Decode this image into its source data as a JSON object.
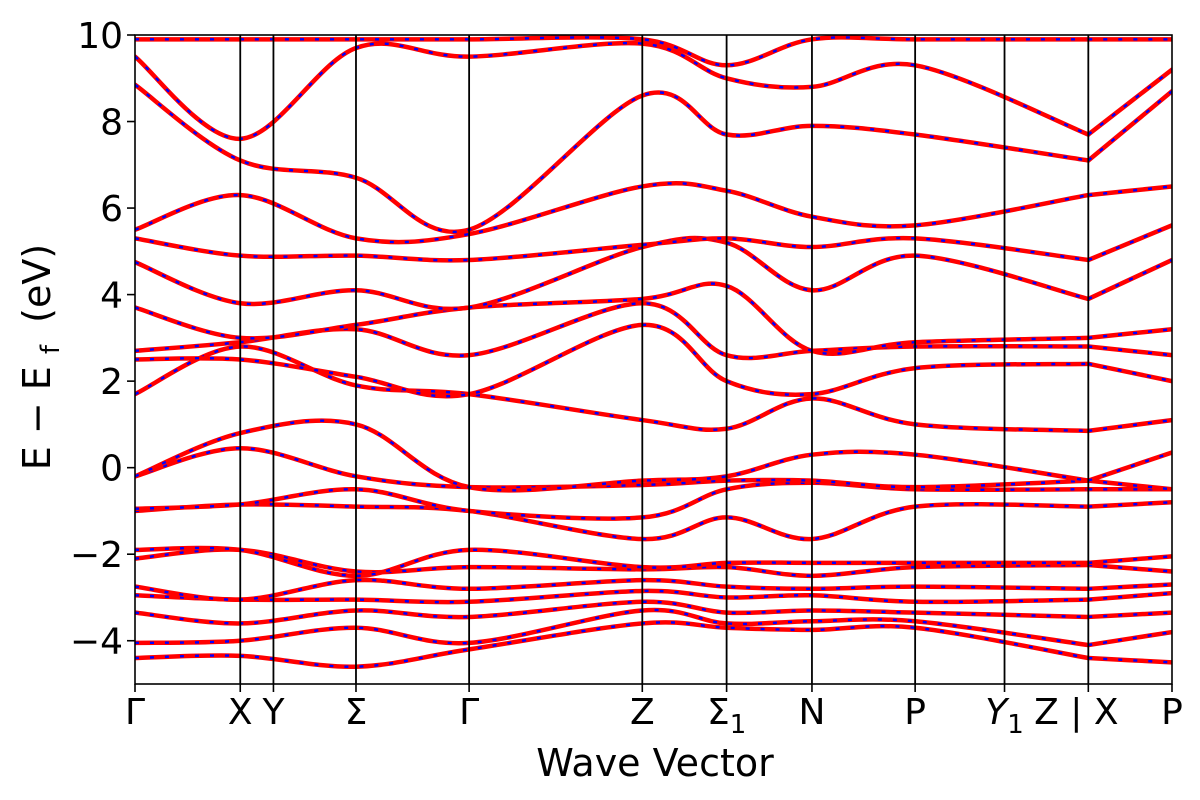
{
  "chart_data": {
    "type": "line",
    "title": "",
    "xlabel": "Wave Vector",
    "ylabel": "E − E",
    "ylabel_sub": "f",
    "ylabel_unit": "(eV)",
    "ylim": [
      -5,
      10
    ],
    "yticks": [
      -4,
      -2,
      0,
      2,
      4,
      6,
      8,
      10
    ],
    "ytick_labels": [
      "−4",
      "−2",
      "0",
      "2",
      "4",
      "6",
      "8",
      "10"
    ],
    "grid": false,
    "legend": "none",
    "colors": {
      "primary_band": "#ff0000",
      "overlay_band": "#0000ff",
      "kpoint_line": "#000000"
    },
    "kpath_labels": [
      {
        "label": "Γ",
        "sub": "",
        "italic": false
      },
      {
        "label": "X",
        "sub": "",
        "italic": false
      },
      {
        "label": "Y",
        "sub": "",
        "italic": false
      },
      {
        "label": "Σ",
        "sub": "",
        "italic": false
      },
      {
        "label": "Γ",
        "sub": "",
        "italic": false
      },
      {
        "label": "Z",
        "sub": "",
        "italic": false
      },
      {
        "label": "Σ",
        "sub": "1",
        "italic": false
      },
      {
        "label": "N",
        "sub": "",
        "italic": false
      },
      {
        "label": "P",
        "sub": "",
        "italic": false
      },
      {
        "label": "Y",
        "sub": "1",
        "italic": true
      },
      {
        "label": "Z | X",
        "sub": "",
        "italic": false
      },
      {
        "label": "P",
        "sub": "",
        "italic": false
      }
    ],
    "kpath_positions": [
      0.0,
      0.1015,
      0.1335,
      0.2131,
      0.3222,
      0.4892,
      0.5705,
      0.6528,
      0.7523,
      0.8385,
      0.9193,
      1.0
    ],
    "segment_breaks": [
      0.9193
    ],
    "bands": [
      {
        "name": "band-01",
        "x": [
          0.0,
          0.1015,
          0.2131,
          0.3222,
          0.4892,
          0.5705,
          0.6528,
          0.7523,
          0.9193,
          1.0
        ],
        "y": [
          -4.4,
          -4.35,
          -4.6,
          -4.2,
          -3.6,
          -3.7,
          -3.75,
          -3.7,
          -4.4,
          -4.5
        ]
      },
      {
        "name": "band-02",
        "x": [
          0.0,
          0.1015,
          0.2131,
          0.3222,
          0.4892,
          0.5705,
          0.6528,
          0.7523,
          0.9193,
          1.0
        ],
        "y": [
          -4.05,
          -4.0,
          -3.7,
          -4.05,
          -3.3,
          -3.6,
          -3.55,
          -3.55,
          -4.1,
          -3.8
        ]
      },
      {
        "name": "band-03",
        "x": [
          0.0,
          0.1015,
          0.2131,
          0.3222,
          0.4892,
          0.5705,
          0.6528,
          0.7523,
          0.9193,
          1.0
        ],
        "y": [
          -3.35,
          -3.6,
          -3.3,
          -3.45,
          -3.1,
          -3.35,
          -3.3,
          -3.35,
          -3.45,
          -3.35
        ]
      },
      {
        "name": "band-04",
        "x": [
          0.0,
          0.1015,
          0.2131,
          0.3222,
          0.4892,
          0.5705,
          0.6528,
          0.7523,
          0.9193,
          1.0
        ],
        "y": [
          -2.95,
          -3.05,
          -3.05,
          -3.1,
          -2.85,
          -3.0,
          -2.95,
          -3.1,
          -3.05,
          -2.9
        ]
      },
      {
        "name": "band-05",
        "x": [
          0.0,
          0.1015,
          0.2131,
          0.3222,
          0.4892,
          0.5705,
          0.6528,
          0.7523,
          0.9193,
          1.0
        ],
        "y": [
          -2.75,
          -3.05,
          -2.6,
          -2.8,
          -2.6,
          -2.75,
          -2.8,
          -2.75,
          -2.8,
          -2.7
        ]
      },
      {
        "name": "band-06",
        "x": [
          0.0,
          0.1015,
          0.2131,
          0.3222,
          0.4892,
          0.5705,
          0.6528,
          0.7523,
          0.9193,
          1.0
        ],
        "y": [
          -2.1,
          -1.9,
          -2.4,
          -2.3,
          -2.35,
          -2.3,
          -2.5,
          -2.3,
          -2.25,
          -2.4
        ]
      },
      {
        "name": "band-07",
        "x": [
          0.0,
          0.1015,
          0.2131,
          0.3222,
          0.4892,
          0.5705,
          0.6528,
          0.7523,
          0.9193,
          1.0
        ],
        "y": [
          -1.9,
          -1.9,
          -2.5,
          -1.9,
          -2.3,
          -2.2,
          -2.2,
          -2.2,
          -2.2,
          -2.05
        ]
      },
      {
        "name": "band-08",
        "x": [
          0.0,
          0.1015,
          0.2131,
          0.3222,
          0.4892,
          0.5705,
          0.6528,
          0.7523,
          0.9193,
          1.0
        ],
        "y": [
          -1.0,
          -0.85,
          -0.9,
          -1.0,
          -1.65,
          -1.15,
          -1.65,
          -0.9,
          -0.9,
          -0.8
        ]
      },
      {
        "name": "band-09",
        "x": [
          0.0,
          0.1015,
          0.2131,
          0.3222,
          0.4892,
          0.5705,
          0.6528,
          0.7523,
          0.9193,
          1.0
        ],
        "y": [
          -0.95,
          -0.85,
          -0.5,
          -1.0,
          -1.15,
          -0.5,
          -0.35,
          -0.5,
          -0.5,
          -0.5
        ]
      },
      {
        "name": "band-10",
        "x": [
          0.0,
          0.1015,
          0.2131,
          0.3222,
          0.4892,
          0.5705,
          0.6528,
          0.7523,
          0.9193,
          1.0
        ],
        "y": [
          -0.2,
          0.45,
          -0.2,
          -0.45,
          -0.4,
          -0.3,
          -0.3,
          -0.45,
          -0.3,
          -0.5
        ]
      },
      {
        "name": "band-11",
        "x": [
          0.0,
          0.1015,
          0.2131,
          0.3222,
          0.4892,
          0.5705,
          0.6528,
          0.7523,
          0.9193,
          1.0
        ],
        "y": [
          -0.2,
          0.8,
          1.0,
          -0.45,
          -0.3,
          -0.2,
          0.3,
          0.3,
          -0.3,
          0.35
        ]
      },
      {
        "name": "band-12",
        "x": [
          0.0,
          0.1015,
          0.2131,
          0.3222,
          0.4892,
          0.5705,
          0.6528,
          0.7523,
          0.9193,
          1.0
        ],
        "y": [
          1.7,
          2.8,
          1.9,
          1.7,
          1.1,
          0.9,
          1.6,
          1.0,
          0.85,
          1.1
        ]
      },
      {
        "name": "band-13",
        "x": [
          0.0,
          0.1015,
          0.2131,
          0.3222,
          0.4892,
          0.5705,
          0.6528,
          0.7523,
          0.9193,
          1.0
        ],
        "y": [
          2.5,
          2.5,
          2.1,
          1.7,
          3.3,
          2.0,
          1.7,
          2.3,
          2.4,
          2.0
        ]
      },
      {
        "name": "band-14",
        "x": [
          0.0,
          0.1015,
          0.2131,
          0.3222,
          0.4892,
          0.5705,
          0.6528,
          0.7523,
          0.9193,
          1.0
        ],
        "y": [
          2.7,
          2.9,
          3.2,
          2.6,
          3.8,
          2.6,
          2.7,
          2.8,
          2.8,
          2.6
        ]
      },
      {
        "name": "band-15",
        "x": [
          0.0,
          0.1015,
          0.2131,
          0.3222,
          0.4892,
          0.5705,
          0.6528,
          0.7523,
          0.9193,
          1.0
        ],
        "y": [
          3.7,
          3.0,
          3.3,
          3.7,
          3.9,
          4.2,
          2.7,
          2.9,
          3.0,
          3.2
        ]
      },
      {
        "name": "band-16",
        "x": [
          0.0,
          0.1015,
          0.2131,
          0.3222,
          0.4892,
          0.5705,
          0.6528,
          0.7523,
          0.9193,
          1.0
        ],
        "y": [
          4.75,
          3.8,
          4.1,
          3.7,
          5.1,
          5.2,
          4.1,
          4.9,
          3.9,
          4.8
        ]
      },
      {
        "name": "band-17",
        "x": [
          0.0,
          0.1015,
          0.2131,
          0.3222,
          0.4892,
          0.5705,
          0.6528,
          0.7523,
          0.9193,
          1.0
        ],
        "y": [
          5.3,
          4.9,
          4.9,
          4.8,
          5.15,
          5.3,
          5.1,
          5.3,
          4.8,
          5.6
        ]
      },
      {
        "name": "band-18",
        "x": [
          0.0,
          0.1015,
          0.2131,
          0.3222,
          0.4892,
          0.5705,
          0.6528,
          0.7523,
          0.9193,
          1.0
        ],
        "y": [
          5.5,
          6.3,
          5.3,
          5.4,
          6.5,
          6.4,
          5.8,
          5.6,
          6.3,
          6.5
        ]
      },
      {
        "name": "band-19",
        "x": [
          0.0,
          0.1015,
          0.2131,
          0.3222,
          0.4892,
          0.5705,
          0.6528,
          0.7523,
          0.9193,
          1.0
        ],
        "y": [
          8.85,
          7.1,
          6.7,
          5.5,
          8.6,
          7.7,
          7.9,
          7.7,
          7.1,
          8.7
        ]
      },
      {
        "name": "band-20",
        "x": [
          0.0,
          0.1015,
          0.2131,
          0.3222,
          0.4892,
          0.5705,
          0.6528,
          0.7523,
          0.9193,
          1.0
        ],
        "y": [
          9.5,
          7.6,
          9.7,
          9.5,
          9.8,
          9.0,
          8.8,
          9.3,
          7.7,
          9.2
        ]
      },
      {
        "name": "band-21",
        "x": [
          0.0,
          0.1015,
          0.2131,
          0.3222,
          0.4892,
          0.5705,
          0.6528,
          0.7523,
          0.9193,
          1.0
        ],
        "y": [
          9.9,
          9.9,
          9.9,
          9.9,
          9.9,
          9.3,
          9.9,
          9.9,
          9.9,
          9.9
        ]
      }
    ]
  }
}
